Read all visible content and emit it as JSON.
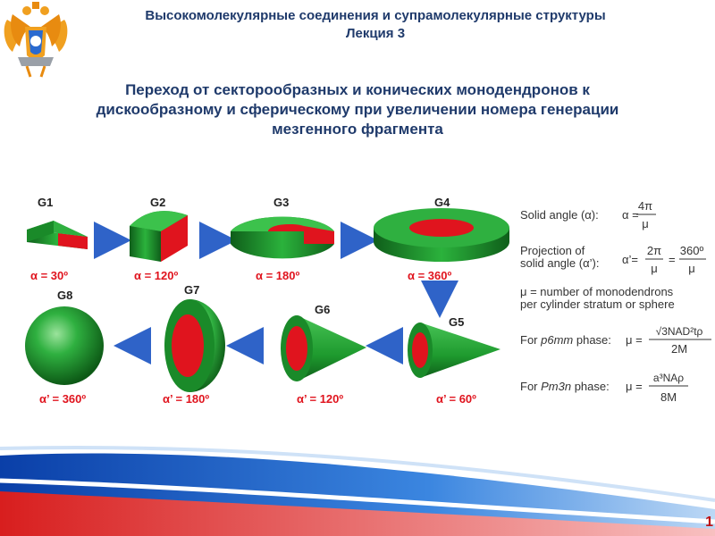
{
  "header": {
    "title_line1": "Высокомолекулярные соединения и супрамолекулярные структуры",
    "title_line2": "Лекция 3",
    "emblem_icon": "double-headed-eagle-emblem-icon"
  },
  "slide": {
    "title_line1": "Переход от секторообразных и конических монодендронов к",
    "title_line2": "дискообразному и сферическому при увеличении номера генерации",
    "title_line3": "мезгенного фрагмента"
  },
  "figure": {
    "generations": [
      {
        "label": "G1",
        "angle": "α = 30º"
      },
      {
        "label": "G2",
        "angle": "α = 120º"
      },
      {
        "label": "G3",
        "angle": "α = 180º"
      },
      {
        "label": "G4",
        "angle": "α = 360º"
      },
      {
        "label": "G5",
        "angle": "α’ = 60º"
      },
      {
        "label": "G6",
        "angle": "α’ = 120º"
      },
      {
        "label": "G7",
        "angle": "α’ = 180º"
      },
      {
        "label": "G8",
        "angle": "α’ = 360º"
      }
    ],
    "formulas": {
      "solid_angle_label": "Solid angle (α):",
      "solid_angle_lhs": "α =",
      "solid_angle_num": "4π",
      "solid_angle_den": "μ",
      "projection_label1": "Projection of",
      "projection_label2": "solid angle (α’):",
      "projection_lhs": "α’=",
      "projection_num1": "2π",
      "projection_den1": "μ",
      "projection_eq": "=",
      "projection_num2": "360º",
      "projection_den2": "μ",
      "mu_def1": "μ = number of monodendrons",
      "mu_def2": "per cylinder stratum or sphere",
      "p6mm_label_prefix": "For ",
      "p6mm_label_italic": "p6mm",
      "p6mm_label_suffix": " phase:",
      "p6mm_lhs": "μ =",
      "p6mm_num": "√3NAD²tρ",
      "p6mm_den": "2M",
      "pm3n_label_prefix": "For ",
      "pm3n_label_italic": "Pm3n",
      "pm3n_label_suffix": " phase:",
      "pm3n_lhs": "μ =",
      "pm3n_num": "a³NAρ",
      "pm3n_den": "8M"
    },
    "colors": {
      "green": "#22a13a",
      "red": "#e0141e",
      "arrow_blue": "#2f63c8",
      "angle_red": "#e0141e"
    }
  },
  "footer": {
    "page_number": "1"
  }
}
